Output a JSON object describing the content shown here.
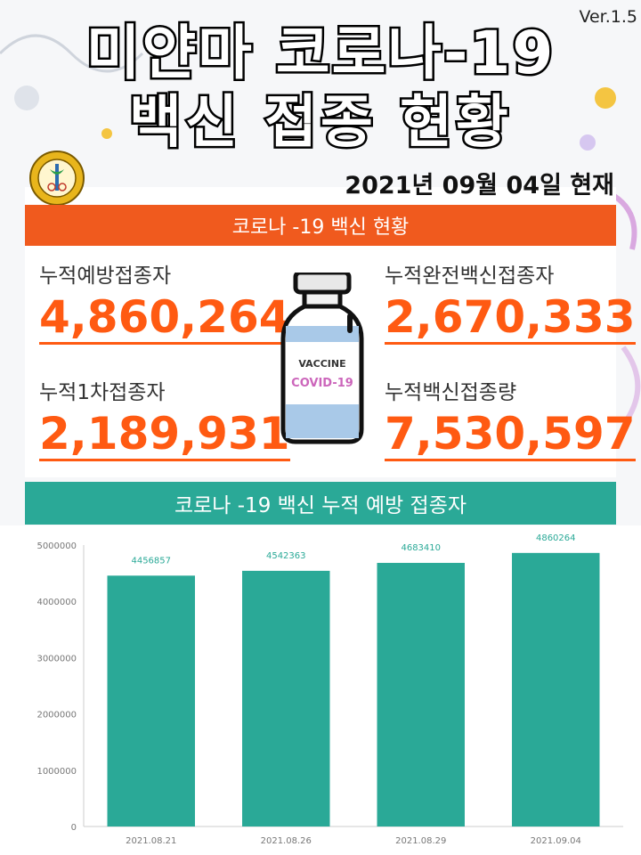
{
  "title": {
    "line1": "미얀마 코로나-19",
    "line2": "백신 접종 현황",
    "version": "Ver.1.5",
    "date": "2021년 09월 04일 현재"
  },
  "colors": {
    "accent_orange": "#f05a1e",
    "value_orange": "#ff5a12",
    "teal": "#2aa997"
  },
  "icons": {
    "logo": "ministry-of-health-seal-icon",
    "vial": "vaccine-vial-icon"
  },
  "status_section": {
    "header": "코로나 -19 백신  현황",
    "stats": {
      "cumulative_vaccinated": {
        "label": "누적예방접종자",
        "value": "4,860,264"
      },
      "cumulative_completed": {
        "label": "누적완전백신접종자",
        "value": "2,670,333"
      },
      "cumulative_first_dose": {
        "label": "누적1차접종자",
        "value": "2,189,931"
      },
      "cumulative_doses": {
        "label": "누적백신접종량",
        "value": "7,530,597"
      }
    },
    "vial_text": {
      "line1": "VACCINE",
      "line2": "COVID-19"
    }
  },
  "chart_section": {
    "header": "코로나 -19 백신 누적 예방 접종자"
  },
  "chart_data": {
    "type": "bar",
    "categories": [
      "2021.08.21",
      "2021.08.26",
      "2021.08.29",
      "2021.09.04"
    ],
    "values": [
      4456857,
      4542363,
      4683410,
      4860264
    ],
    "ylim": [
      0,
      5000000
    ],
    "yticks": [
      0,
      1000000,
      2000000,
      3000000,
      4000000,
      5000000
    ],
    "grid": false,
    "legend": "none",
    "bar_color": "#2aa997"
  }
}
